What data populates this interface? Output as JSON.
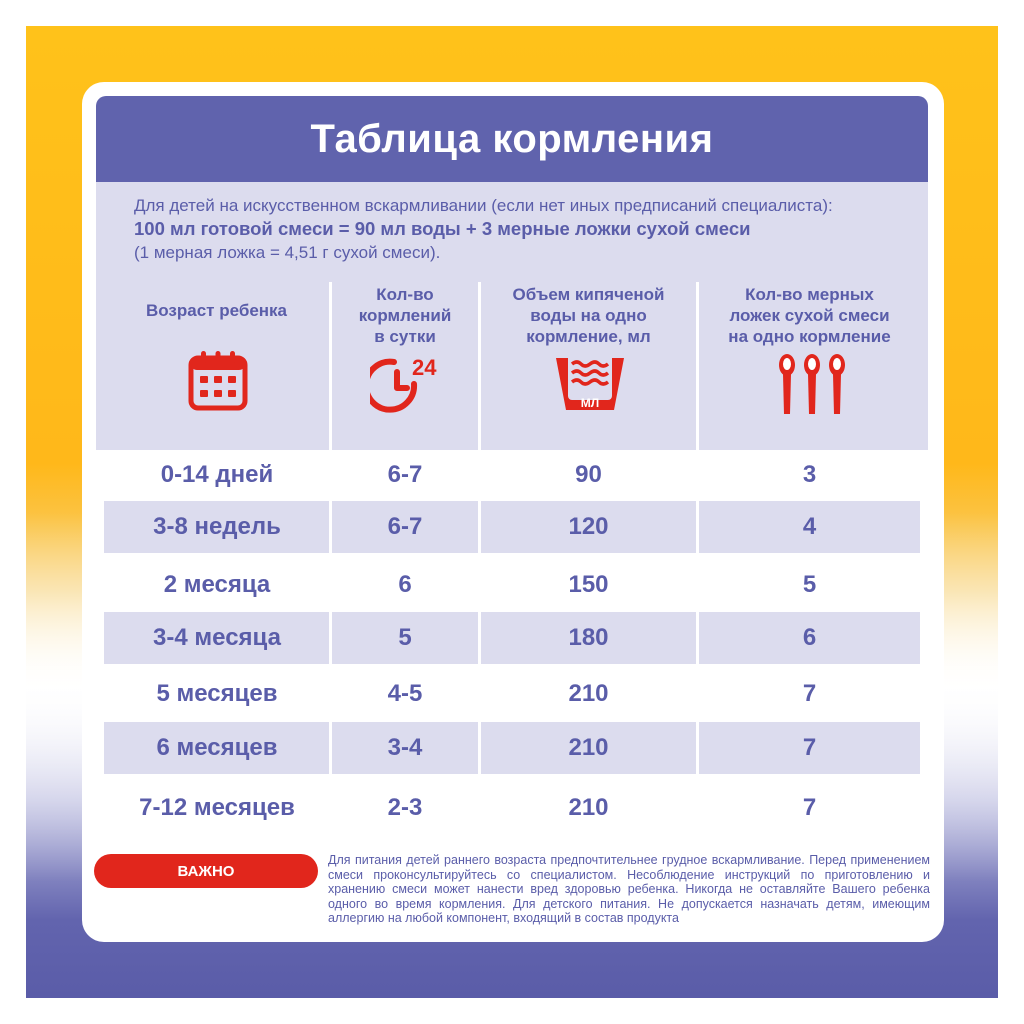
{
  "title": "Таблица кормления",
  "intro": {
    "line1": "Для детей на искусственном вскармливании (если нет иных предписаний специалиста):",
    "line2": "100 мл готовой смеси = 90 мл воды + 3 мерные ложки сухой смеси",
    "line3": "(1 мерная ложка = 4,51 г сухой смеси)."
  },
  "columns": [
    {
      "label_lines": [
        "Возраст ребенка"
      ],
      "icon": "calendar-icon"
    },
    {
      "label_lines": [
        "Кол-во",
        "кормлений",
        "в сутки"
      ],
      "icon": "clock-24-icon",
      "icon_text": "24"
    },
    {
      "label_lines": [
        "Объем кипяченой",
        "воды на одно",
        "кормление, мл"
      ],
      "icon": "water-bowl-icon",
      "icon_text": "МЛ"
    },
    {
      "label_lines": [
        "Кол-во мерных",
        "ложек сухой смеси",
        "на одно кормление"
      ],
      "icon": "spoons-icon"
    }
  ],
  "rows": [
    {
      "age": "0-14 дней",
      "feedings": "6-7",
      "volume": "90",
      "spoons": "3"
    },
    {
      "age": "3-8 недель",
      "feedings": "6-7",
      "volume": "120",
      "spoons": "4"
    },
    {
      "age": "2 месяца",
      "feedings": "6",
      "volume": "150",
      "spoons": "5"
    },
    {
      "age": "3-4 месяца",
      "feedings": "5",
      "volume": "180",
      "spoons": "6"
    },
    {
      "age": "5 месяцев",
      "feedings": "4-5",
      "volume": "210",
      "spoons": "7"
    },
    {
      "age": "6 месяцев",
      "feedings": "3-4",
      "volume": "210",
      "spoons": "7"
    },
    {
      "age": "7-12 месяцев",
      "feedings": "2-3",
      "volume": "210",
      "spoons": "7"
    }
  ],
  "important_label": "ВАЖНО",
  "note": "Для питания детей раннего возраста предпочтительнее грудное вскармливание. Перед применением смеси проконсультируйтесь со специалистом. Несоблюдение инструкций по приготовлению и хранению смеси может нанести вред здоровью ребенка. Никогда не оставляйте Вашего ребенка одного во время кормления. Для детского питания. Не допускается назначать детям, имеющим аллергию на любой компонент, входящий в состав продукта",
  "colors": {
    "accent": "#6063ad",
    "panel": "#dcdcee",
    "red": "#e1261c",
    "yellow": "#ffc21a"
  }
}
